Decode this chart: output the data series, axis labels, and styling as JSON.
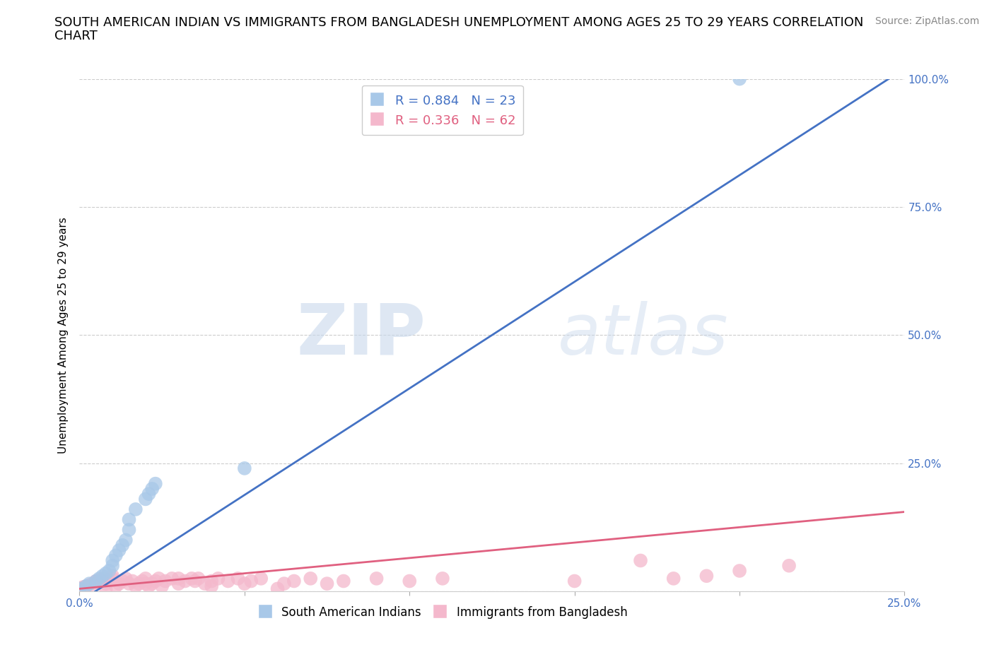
{
  "title_line1": "SOUTH AMERICAN INDIAN VS IMMIGRANTS FROM BANGLADESH UNEMPLOYMENT AMONG AGES 25 TO 29 YEARS CORRELATION",
  "title_line2": "CHART",
  "source": "Source: ZipAtlas.com",
  "ylabel": "Unemployment Among Ages 25 to 29 years",
  "xlim": [
    0.0,
    0.25
  ],
  "ylim": [
    0.0,
    1.0
  ],
  "xticks": [
    0.0,
    0.05,
    0.1,
    0.15,
    0.2,
    0.25
  ],
  "xticklabels": [
    "0.0%",
    "",
    "",
    "",
    "",
    "25.0%"
  ],
  "yticks": [
    0.0,
    0.25,
    0.5,
    0.75,
    1.0
  ],
  "yticklabels_right": [
    "",
    "25.0%",
    "50.0%",
    "75.0%",
    "100.0%"
  ],
  "blue_R": 0.884,
  "blue_N": 23,
  "pink_R": 0.336,
  "pink_N": 62,
  "blue_color": "#a8c8e8",
  "pink_color": "#f4b8cc",
  "blue_line_color": "#4472c4",
  "pink_line_color": "#e06080",
  "watermark_zip": "ZIP",
  "watermark_atlas": "atlas",
  "legend_label_blue": "South American Indians",
  "legend_label_pink": "Immigrants from Bangladesh",
  "blue_scatter_x": [
    0.0,
    0.002,
    0.003,
    0.005,
    0.006,
    0.007,
    0.008,
    0.009,
    0.01,
    0.01,
    0.011,
    0.012,
    0.013,
    0.014,
    0.015,
    0.015,
    0.017,
    0.02,
    0.021,
    0.022,
    0.023,
    0.05,
    0.2
  ],
  "blue_scatter_y": [
    0.005,
    0.01,
    0.015,
    0.02,
    0.025,
    0.03,
    0.035,
    0.04,
    0.05,
    0.06,
    0.07,
    0.08,
    0.09,
    0.1,
    0.12,
    0.14,
    0.16,
    0.18,
    0.19,
    0.2,
    0.21,
    0.24,
    1.0
  ],
  "pink_scatter_x": [
    0.0,
    0.001,
    0.002,
    0.003,
    0.004,
    0.005,
    0.005,
    0.006,
    0.007,
    0.008,
    0.008,
    0.009,
    0.01,
    0.01,
    0.011,
    0.012,
    0.013,
    0.014,
    0.015,
    0.016,
    0.017,
    0.018,
    0.019,
    0.02,
    0.02,
    0.021,
    0.022,
    0.023,
    0.024,
    0.025,
    0.026,
    0.028,
    0.03,
    0.03,
    0.032,
    0.034,
    0.035,
    0.036,
    0.038,
    0.04,
    0.04,
    0.042,
    0.045,
    0.048,
    0.05,
    0.052,
    0.055,
    0.06,
    0.062,
    0.065,
    0.07,
    0.075,
    0.08,
    0.09,
    0.1,
    0.11,
    0.15,
    0.17,
    0.18,
    0.19,
    0.2,
    0.215
  ],
  "pink_scatter_y": [
    0.005,
    0.008,
    0.01,
    0.012,
    0.015,
    0.018,
    0.02,
    0.022,
    0.025,
    0.005,
    0.015,
    0.02,
    0.025,
    0.03,
    0.01,
    0.015,
    0.02,
    0.025,
    0.015,
    0.02,
    0.01,
    0.015,
    0.02,
    0.015,
    0.025,
    0.01,
    0.015,
    0.02,
    0.025,
    0.01,
    0.02,
    0.025,
    0.015,
    0.025,
    0.02,
    0.025,
    0.02,
    0.025,
    0.015,
    0.01,
    0.02,
    0.025,
    0.02,
    0.025,
    0.015,
    0.02,
    0.025,
    0.005,
    0.015,
    0.02,
    0.025,
    0.015,
    0.02,
    0.025,
    0.02,
    0.025,
    0.02,
    0.06,
    0.025,
    0.03,
    0.04,
    0.05
  ],
  "blue_line_x": [
    0.0,
    0.25
  ],
  "blue_line_y": [
    -0.02,
    1.02
  ],
  "pink_line_x": [
    0.0,
    0.25
  ],
  "pink_line_y": [
    0.005,
    0.155
  ],
  "grid_color": "#cccccc",
  "background_color": "#ffffff",
  "title_fontsize": 13,
  "axis_label_fontsize": 11,
  "tick_fontsize": 11,
  "tick_color_blue": "#4472c4",
  "source_fontsize": 10,
  "source_color": "#888888"
}
